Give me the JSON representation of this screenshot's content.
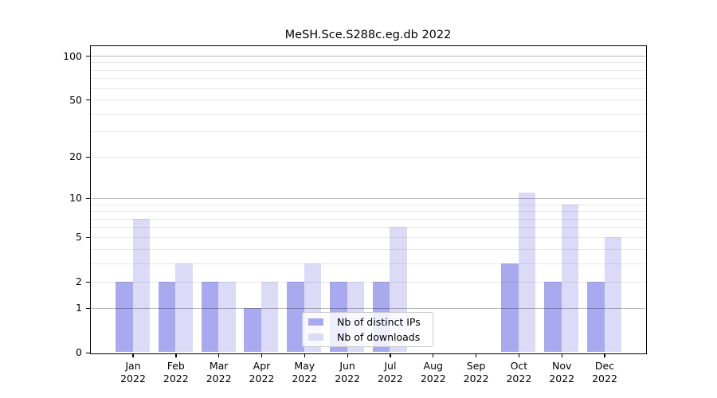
{
  "chart_data": {
    "type": "bar",
    "title": "MeSH.Sce.S288c.eg.db 2022",
    "year_label": "2022",
    "categories": [
      "Jan",
      "Feb",
      "Mar",
      "Apr",
      "May",
      "Jun",
      "Jul",
      "Aug",
      "Sep",
      "Oct",
      "Nov",
      "Dec"
    ],
    "series": [
      {
        "name": "Nb of distinct IPs",
        "color": "#a9a9f0",
        "values": [
          2,
          2,
          2,
          1,
          2,
          2,
          2,
          0,
          0,
          3,
          2,
          2
        ]
      },
      {
        "name": "Nb of downloads",
        "color": "#dbdbf8",
        "values": [
          7,
          3,
          2,
          2,
          3,
          2,
          6,
          0,
          0,
          11,
          9,
          5
        ]
      }
    ],
    "yscale": "log1p",
    "ylim": [
      0,
      120
    ],
    "ytick_values": [
      0,
      1,
      2,
      5,
      10,
      20,
      50,
      100
    ],
    "ytick_labels": [
      "0",
      "1",
      "2",
      "5",
      "10",
      "20",
      "50",
      "100"
    ],
    "major_gridlines": [
      1,
      10,
      100
    ],
    "minor_gridlines": [
      2,
      3,
      4,
      5,
      6,
      7,
      8,
      9,
      20,
      30,
      40,
      50,
      60,
      70,
      80,
      90
    ],
    "grid_over_bars": true,
    "legend_position": "lower center",
    "colors": {
      "distinct_ips": "#a9a9f0",
      "downloads": "#dbdbf8",
      "major_grid": "#b8b8b8",
      "minor_grid": "#e8e8e8",
      "axis": "#000000",
      "text": "#000000",
      "legend_border": "#cccccc"
    }
  }
}
